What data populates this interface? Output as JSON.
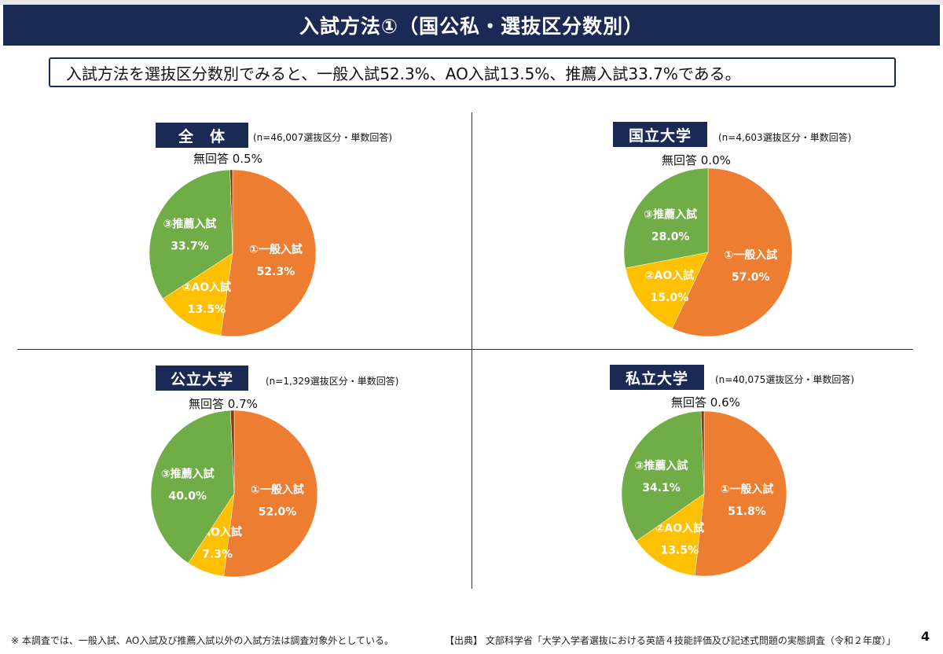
{
  "header": {
    "title": "入試方法①（国公私・選抜区分数別）"
  },
  "summary": "入試方法を選抜区分数別でみると、一般入試52.3%、AO入試13.5%、推薦入試33.7%である。",
  "colors": {
    "general": "#ed7d31",
    "ao": "#ffc000",
    "suisen": "#70ad47",
    "noanswer": "#843c0c",
    "accent": "#1b2a55"
  },
  "chart_data": [
    {
      "type": "pie",
      "title": "全　体",
      "note": "(n=46,007選抜区分・単数回答)",
      "no_answer_label": "無回答 0.5%",
      "slices": [
        {
          "name": "①一般入試",
          "value": 52.3,
          "label": "52.3%"
        },
        {
          "name": "②AO入試",
          "value": 13.5,
          "label": "13.5%"
        },
        {
          "name": "③推薦入試",
          "value": 33.7,
          "label": "33.7%"
        },
        {
          "name": "無回答",
          "value": 0.5,
          "label": "0.5%"
        }
      ]
    },
    {
      "type": "pie",
      "title": "国立大学",
      "note": "(n=4,603選抜区分・単数回答)",
      "no_answer_label": "無回答 0.0%",
      "slices": [
        {
          "name": "①一般入試",
          "value": 57.0,
          "label": "57.0%"
        },
        {
          "name": "②AO入試",
          "value": 15.0,
          "label": "15.0%"
        },
        {
          "name": "③推薦入試",
          "value": 28.0,
          "label": "28.0%"
        },
        {
          "name": "無回答",
          "value": 0.0,
          "label": "0.0%"
        }
      ]
    },
    {
      "type": "pie",
      "title": "公立大学",
      "note": "(n=1,329選抜区分・単数回答)",
      "no_answer_label": "無回答 0.7%",
      "slices": [
        {
          "name": "①一般入試",
          "value": 52.0,
          "label": "52.0%"
        },
        {
          "name": "②AO入試",
          "value": 7.3,
          "label": "7.3%"
        },
        {
          "name": "③推薦入試",
          "value": 40.0,
          "label": "40.0%"
        },
        {
          "name": "無回答",
          "value": 0.7,
          "label": "0.7%"
        }
      ]
    },
    {
      "type": "pie",
      "title": "私立大学",
      "note": "(n=40,075選抜区分・単数回答)",
      "no_answer_label": "無回答 0.6%",
      "slices": [
        {
          "name": "①一般入試",
          "value": 51.8,
          "label": "51.8%"
        },
        {
          "name": "②AO入試",
          "value": 13.5,
          "label": "13.5%"
        },
        {
          "name": "③推薦入試",
          "value": 34.1,
          "label": "34.1%"
        },
        {
          "name": "無回答",
          "value": 0.6,
          "label": "0.6%"
        }
      ]
    }
  ],
  "footnote": "※ 本調査では、一般入試、AO入試及び推薦入試以外の入試方法は調査対象外としている。",
  "source": "【出典】 文部科学省「大学入学者選抜における英語４技能評価及び記述式問題の実態調査（令和２年度）」",
  "page_number": "4"
}
